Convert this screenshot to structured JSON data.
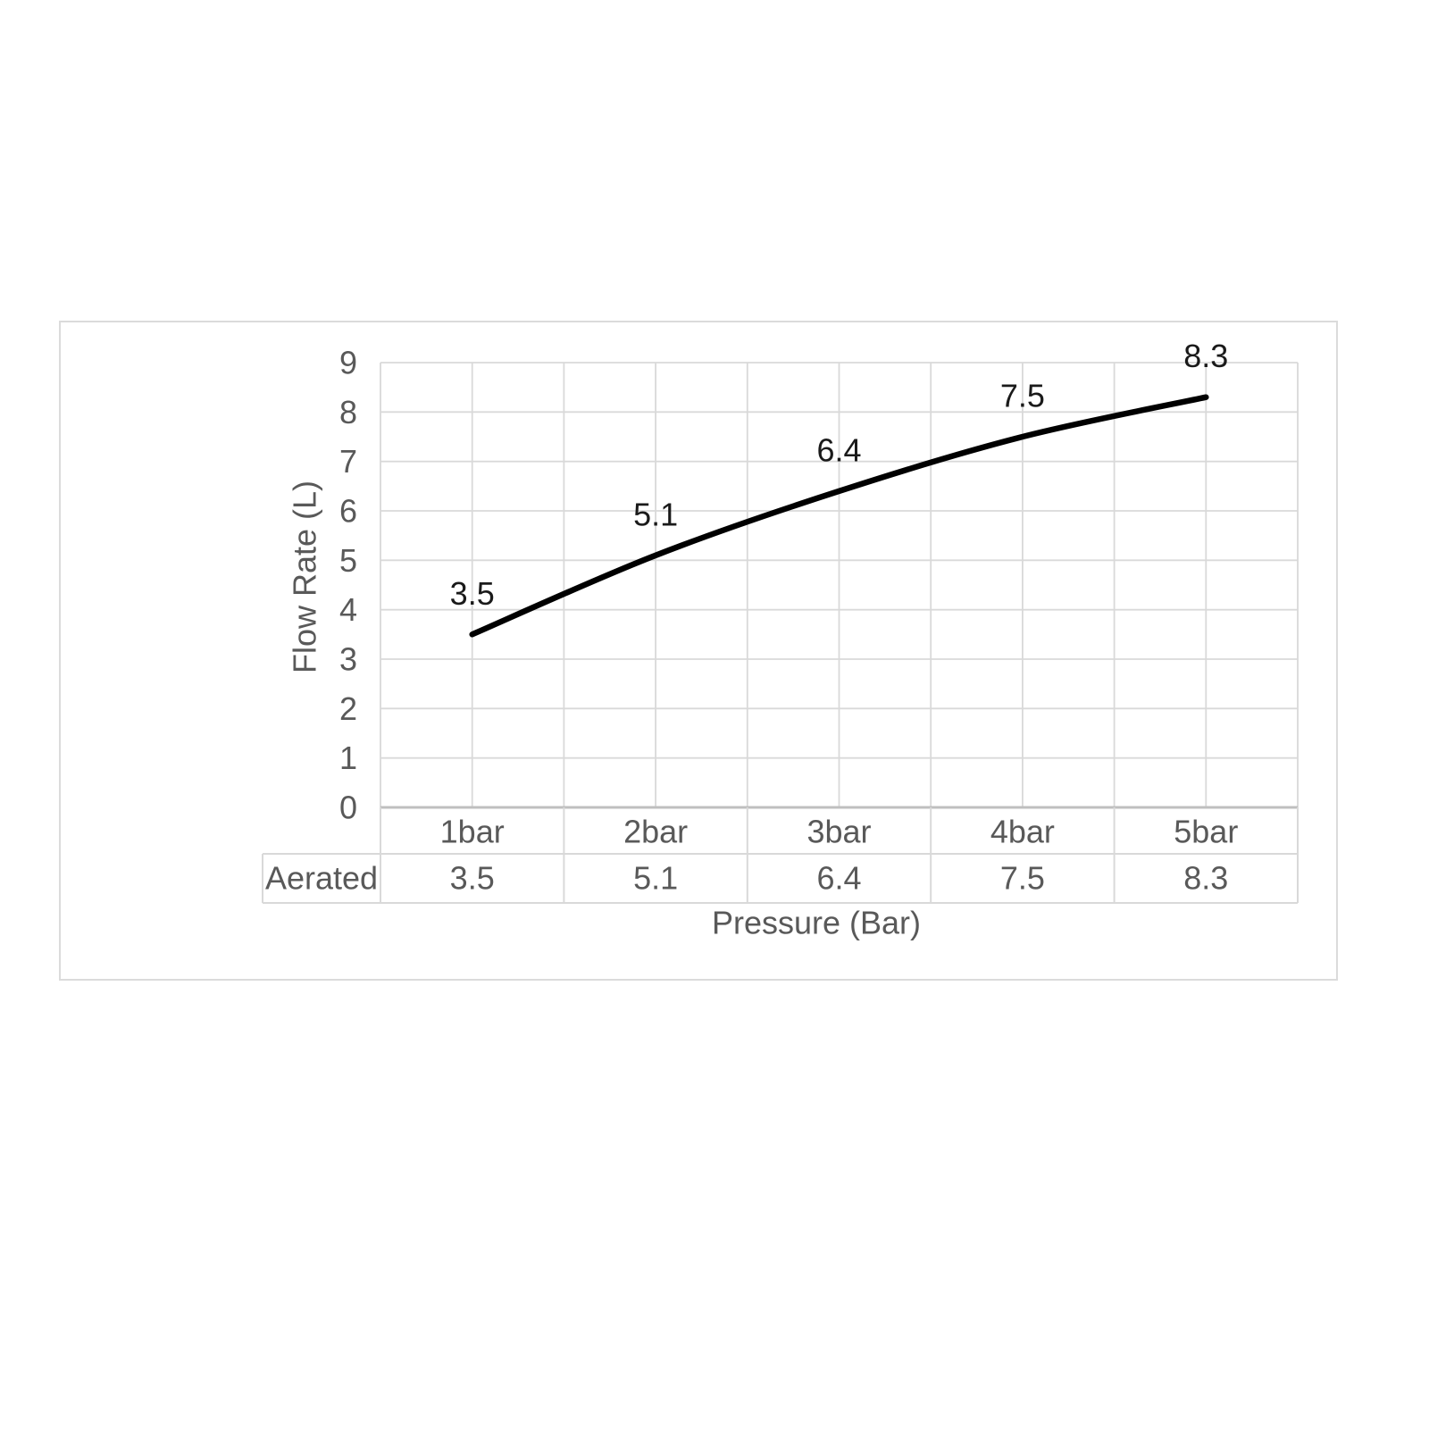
{
  "chart_data": {
    "type": "line",
    "title": "",
    "categories": [
      "1bar",
      "2bar",
      "3bar",
      "4bar",
      "5bar"
    ],
    "series": [
      {
        "name": "Aerated",
        "values": [
          3.5,
          5.1,
          6.4,
          7.5,
          8.3
        ]
      }
    ],
    "data_labels": [
      "3.5",
      "5.1",
      "6.4",
      "7.5",
      "8.3"
    ],
    "table_values": [
      "3.5",
      "5.1",
      "6.4",
      "7.5",
      "8.3"
    ],
    "xlabel": "Pressure (Bar)",
    "ylabel": "Flow Rate (L)",
    "ylim": [
      0,
      9
    ],
    "y_ticks": [
      "0",
      "1",
      "2",
      "3",
      "4",
      "5",
      "6",
      "7",
      "8",
      "9"
    ],
    "grid": true,
    "smooth_line": true,
    "legend_position": "none",
    "data_table_shown": true
  },
  "colors": {
    "series_line": "#000000",
    "data_label_text": "#1a1a1a",
    "axis_text": "#595959",
    "gridline": "#d9d9d9",
    "axis_line": "#bfbfbf",
    "table_border": "#d9d9d9",
    "chart_border": "#dbdbdb",
    "background": "#ffffff"
  }
}
